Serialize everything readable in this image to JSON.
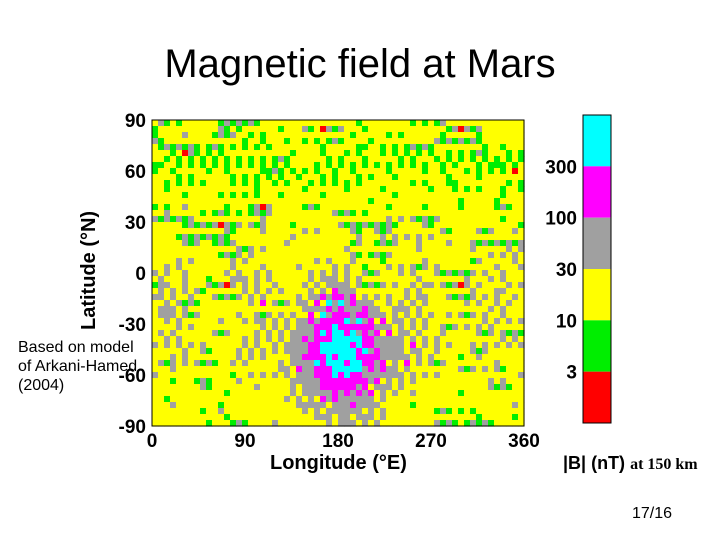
{
  "page": {
    "page_number": "17/16"
  },
  "note": "Based on model of Arkani-Hamed (2004)",
  "colors": {
    "level_lt3": "#ff0000",
    "level_3_10": "#00ee00",
    "level_10_30": "#ffff00",
    "level_30_100": "#a0a0a0",
    "level_100_300": "#ff00ff",
    "level_gt300": "#00ffff"
  },
  "chart_data": {
    "type": "heatmap",
    "title": "Magnetic field at Mars",
    "xlabel": "Longitude (°E)",
    "ylabel": "Latitude (°N)",
    "x_ticks": [
      "0",
      "90",
      "180",
      "270",
      "360"
    ],
    "y_ticks": [
      "90",
      "60",
      "30",
      "0",
      "-30",
      "-60",
      "-90"
    ],
    "xlim": [
      0,
      360
    ],
    "ylim": [
      -90,
      90
    ],
    "colorbar": {
      "label": "|B| (nT)",
      "label_suffix": "at 150 km",
      "tick_labels": [
        "300",
        "100",
        "30",
        "10",
        "3"
      ],
      "levels_nT": [
        3,
        10,
        30,
        100,
        300
      ]
    }
  }
}
